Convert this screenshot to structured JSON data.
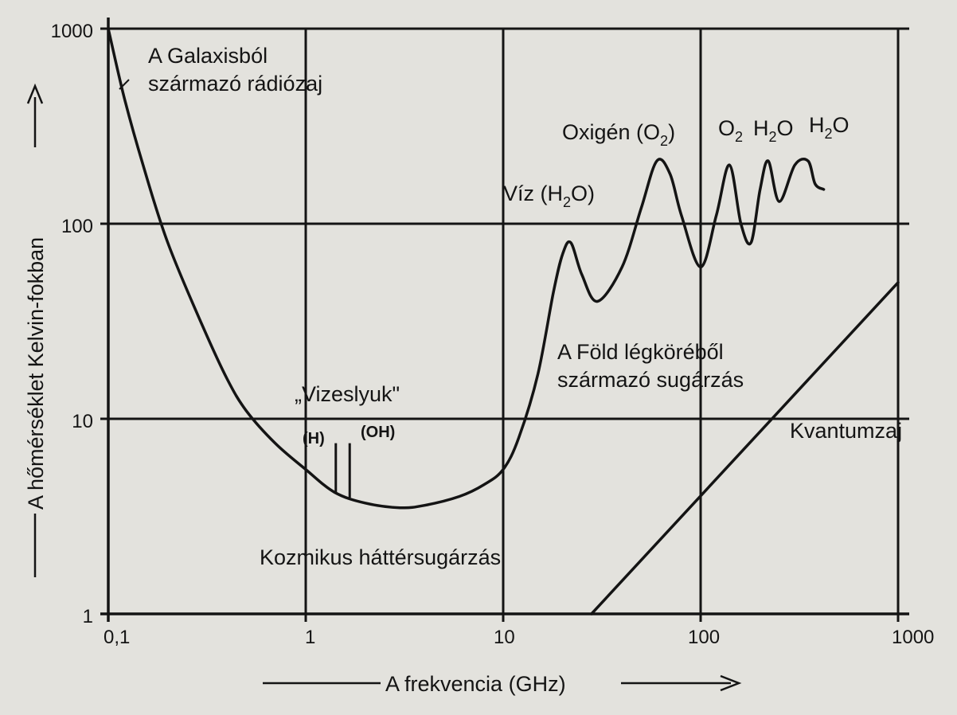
{
  "chart_data": {
    "type": "line",
    "xscale": "log",
    "yscale": "log",
    "xlim": [
      0.1,
      1000
    ],
    "ylim": [
      1,
      1000
    ],
    "grid": true,
    "xlabel": "A frekvencia (GHz)",
    "ylabel": "A hőmérséklet Kelvin-fokban",
    "x_ticks": [
      "0,1",
      "1",
      "10",
      "100",
      "1000"
    ],
    "y_ticks": [
      "1",
      "10",
      "100",
      "1000"
    ],
    "series": [
      {
        "name": "A Föld légköréből származó sugárzás",
        "x": [
          0.1,
          0.12,
          0.15,
          0.2,
          0.3,
          0.4,
          0.5,
          0.7,
          1,
          1.4,
          2,
          3,
          4,
          6,
          8,
          10,
          12,
          15,
          18,
          20,
          22,
          25,
          30,
          40,
          50,
          60,
          70,
          80,
          100,
          120,
          140,
          160,
          180,
          200,
          220,
          250,
          300,
          350,
          380,
          420
        ],
        "y": [
          1000,
          450,
          200,
          80,
          30,
          16,
          11,
          7.5,
          5.5,
          4.2,
          3.7,
          3.5,
          3.6,
          4.0,
          4.6,
          5.5,
          8,
          17,
          45,
          70,
          80,
          55,
          40,
          60,
          120,
          210,
          180,
          110,
          60,
          110,
          200,
          100,
          80,
          150,
          210,
          130,
          200,
          210,
          160,
          150
        ]
      },
      {
        "name": "Kvantumzaj",
        "x": [
          28,
          1000
        ],
        "y": [
          1,
          50
        ]
      }
    ],
    "annotations": {
      "galaxy_line1": "A Galaxisból",
      "galaxy_line2": "származó rádiózaj",
      "oxygen": "Oxigén (O",
      "oxygen_sub": "2",
      "oxygen_close": ")",
      "peak_o2": "O",
      "peak_o2_sub": "2",
      "peak_h2o_a": "H",
      "peak_h2o_a_sub": "2",
      "peak_h2o_a_end": "O",
      "peak_h2o_b": "H",
      "peak_h2o_b_sub": "2",
      "peak_h2o_b_end": "O",
      "water": "Víz (H",
      "water_sub": "2",
      "water_end": "O)",
      "earth_line1": "A Föld légköréből",
      "earth_line2": "származó sugárzás",
      "waterhole": "„Vizeslyuk\"",
      "h_marker": "(H)",
      "oh_marker": "(OH)",
      "quantum": "Kvantumzaj",
      "cosmic": "Kozmikus háttérsugárzás"
    },
    "markers": [
      {
        "label": "(H)",
        "x": 1.42,
        "y_top": 7.5
      },
      {
        "label": "(OH)",
        "x": 1.67,
        "y_top": 7.5
      }
    ]
  }
}
